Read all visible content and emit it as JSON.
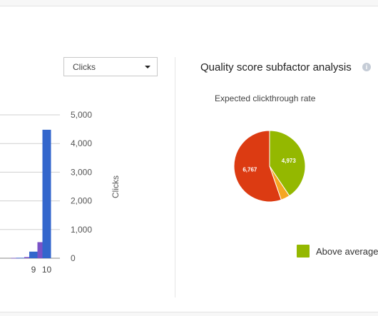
{
  "dropdown": {
    "selected": "Clicks"
  },
  "bar_chart": {
    "y_axis_title": "Clicks"
  },
  "quality": {
    "title": "Quality score subfactor analysis",
    "info_icon": "info-icon",
    "subfactor_label": "Expected clickthrough rate",
    "legend_above": "Above average"
  },
  "colors": {
    "bar_blue": "#3366cc",
    "bar_purple": "#7a52c7",
    "pie_green": "#94b800",
    "pie_orange": "#f6a623",
    "pie_red": "#dc3b12"
  },
  "chart_data": [
    {
      "type": "bar",
      "categories": [
        "",
        "",
        "",
        "",
        "",
        "",
        "",
        "",
        "9",
        "10"
      ],
      "series": [
        {
          "values": [
            null,
            null,
            null,
            null,
            null,
            null,
            null,
            10,
            40,
            560
          ]
        },
        {
          "values": [
            null,
            null,
            null,
            null,
            null,
            null,
            null,
            15,
            230,
            4480
          ]
        }
      ],
      "ylim": [
        0,
        5000
      ],
      "ylabel": "Clicks",
      "y_ticks": [
        "0",
        "1,000",
        "2,000",
        "3,000",
        "4,000",
        "5,000"
      ],
      "grid": true
    },
    {
      "type": "pie",
      "title": "Expected clickthrough rate",
      "slices": [
        {
          "value": 4973,
          "label": "4,973",
          "color": "#94b800"
        },
        {
          "value": 500,
          "label": "",
          "color": "#f6a623"
        },
        {
          "value": 6767,
          "label": "6,767",
          "color": "#dc3b12"
        }
      ],
      "legend": [
        "Above average"
      ],
      "legend_position": "bottom-right"
    }
  ]
}
